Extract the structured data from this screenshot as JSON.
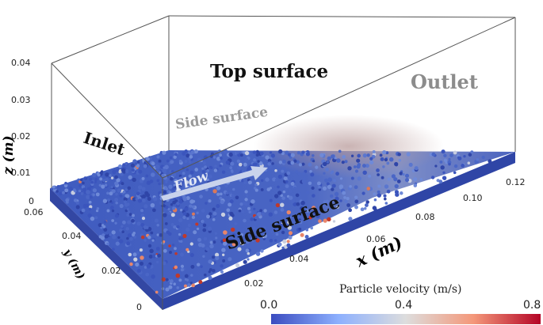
{
  "labels": {
    "top_surface": "Top surface",
    "outlet": "Outlet",
    "side_surface_back": "Side surface",
    "side_surface_front": "Side surface",
    "inlet": "Inlet",
    "flow": "Flow",
    "z_axis": "z (m)",
    "y_axis": "y (m)",
    "x_axis": "x (m)"
  },
  "z_ticks": [
    "0.04",
    "0.03",
    "0.02",
    "0.01",
    "0"
  ],
  "y_ticks": [
    "0.06",
    "0.04",
    "0.02",
    "0"
  ],
  "x_ticks": [
    "0.02",
    "0.04",
    "0.06",
    "0.08",
    "0.10",
    "0.12"
  ],
  "colorbar": {
    "title": "Particle velocity (m/s)",
    "tick_labels": [
      "0.0",
      "0.4",
      "0.8"
    ],
    "min": 0.0,
    "max": 0.8,
    "colors": [
      "#3b4cc0",
      "#8db0fe",
      "#dddddd",
      "#f4987a",
      "#b40426"
    ]
  },
  "colors": {
    "bed_base": "#3a55b8",
    "frame": "#555555",
    "ghost_text": "#8c8c8c",
    "flow_arrow": "#c9d3ec"
  }
}
